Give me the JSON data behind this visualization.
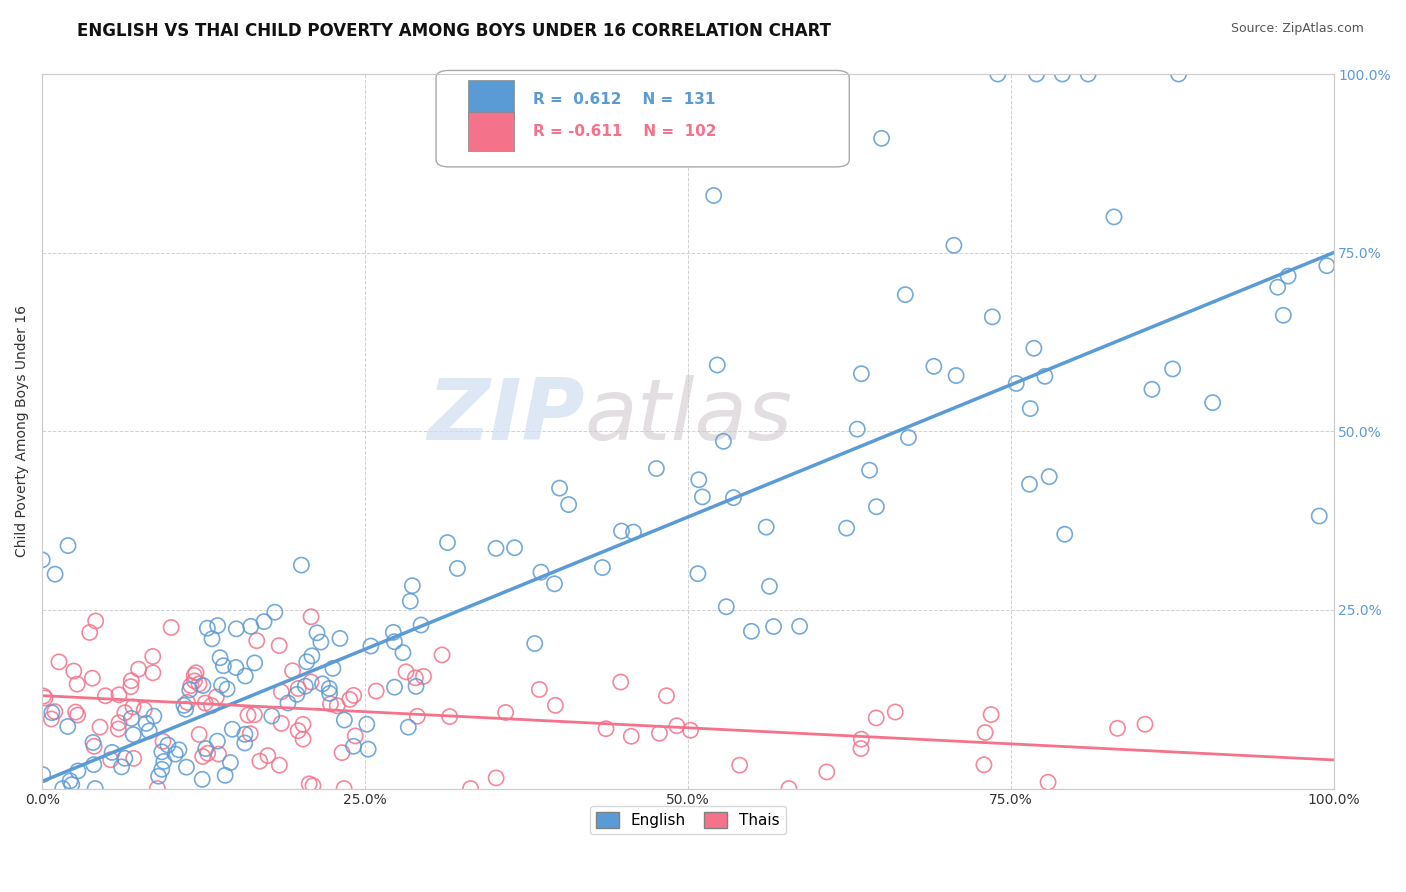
{
  "title": "ENGLISH VS THAI CHILD POVERTY AMONG BOYS UNDER 16 CORRELATION CHART",
  "source": "Source: ZipAtlas.com",
  "ylabel": "Child Poverty Among Boys Under 16",
  "xlim": [
    0,
    1
  ],
  "ylim": [
    0,
    1
  ],
  "xticks": [
    0,
    0.25,
    0.5,
    0.75,
    1.0
  ],
  "yticks": [
    0.25,
    0.5,
    0.75,
    1.0
  ],
  "xticklabels": [
    "0.0%",
    "25.0%",
    "50.0%",
    "75.0%",
    "100.0%"
  ],
  "yticklabels_right": [
    "25.0%",
    "50.0%",
    "75.0%",
    "100.0%"
  ],
  "english_color": "#5b9bd5",
  "thai_color": "#f4728a",
  "english_R": 0.612,
  "english_N": 131,
  "thai_R": -0.611,
  "thai_N": 102,
  "watermark_zip": "ZIP",
  "watermark_atlas": "atlas",
  "title_fontsize": 12,
  "axis_label_fontsize": 10,
  "tick_fontsize": 10,
  "background_color": "#ffffff",
  "grid_color": "#cccccc",
  "english_trend_start_y": 0.01,
  "english_trend_end_y": 0.75,
  "thai_trend_start_y": 0.13,
  "thai_trend_end_y": 0.04
}
